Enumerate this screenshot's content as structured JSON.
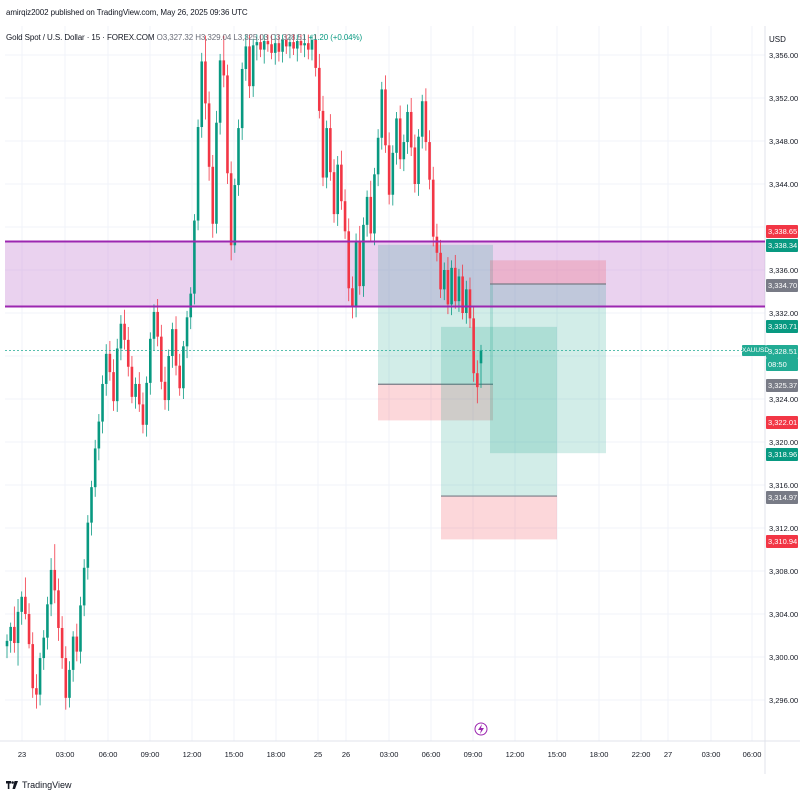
{
  "publisher": "amirqiz2002 published on TradingView.com, May 26, 2025 09:36 UTC",
  "legend": {
    "symbol": "Gold Spot / U.S. Dollar · 15 · FOREX.COM",
    "open": "O3,327.32",
    "high": "H3,329.04",
    "low": "L3,325.03",
    "close": "C3,328.51",
    "change": "+1.20 (+0.04%)"
  },
  "currency": "USD",
  "footer_brand": "TradingView",
  "chart_data": {
    "type": "candlestick",
    "symbol": "XAUUSD",
    "timeframe": "15",
    "y_axis": {
      "min": 3294,
      "max": 3358,
      "ticks": [
        3296,
        3300,
        3304,
        3308,
        3312,
        3316,
        3320,
        3324,
        3328,
        3332,
        3336,
        3340,
        3344,
        3348,
        3352,
        3356
      ],
      "tick_labels": [
        "3,296.00",
        "3,300.00",
        "3,304.00",
        "3,308.00",
        "3,312.00",
        "3,316.00",
        "3,320.00",
        "3,324.00",
        "3,328.00",
        "3,332.00",
        "3,336.00",
        "3,340.00",
        "3,344.00",
        "3,348.00",
        "3,352.00",
        "3,356.00"
      ]
    },
    "x_axis": {
      "labels": [
        "23",
        "03:00",
        "06:00",
        "09:00",
        "12:00",
        "15:00",
        "18:00",
        "25",
        "26",
        "03:00",
        "06:00",
        "09:00",
        "12:00",
        "15:00",
        "18:00",
        "22:00",
        "27",
        "03:00",
        "06:00"
      ]
    },
    "candles": [
      [
        3301.0,
        3302.1,
        3299.9,
        3301.5
      ],
      [
        3301.5,
        3303.2,
        3300.4,
        3302.8
      ],
      [
        3302.8,
        3304.7,
        3300.4,
        3301.3
      ],
      [
        3301.3,
        3305.4,
        3299.2,
        3304.2
      ],
      [
        3304.2,
        3306.1,
        3303.0,
        3305.6
      ],
      [
        3305.6,
        3307.4,
        3303.5,
        3304.0
      ],
      [
        3304.0,
        3305.0,
        3300.8,
        3301.2
      ],
      [
        3301.2,
        3302.3,
        3296.2,
        3297.1
      ],
      [
        3297.1,
        3298.4,
        3295.2,
        3296.5
      ],
      [
        3296.5,
        3300.4,
        3295.5,
        3299.9
      ],
      [
        3299.9,
        3302.5,
        3298.8,
        3301.8
      ],
      [
        3301.8,
        3305.6,
        3300.7,
        3304.9
      ],
      [
        3304.9,
        3309.2,
        3303.8,
        3308.1
      ],
      [
        3308.1,
        3310.5,
        3305.0,
        3306.2
      ],
      [
        3306.2,
        3307.3,
        3301.5,
        3302.7
      ],
      [
        3302.7,
        3303.8,
        3298.9,
        3299.9
      ],
      [
        3299.9,
        3301.0,
        3295.1,
        3296.2
      ],
      [
        3296.2,
        3299.6,
        3295.3,
        3298.8
      ],
      [
        3298.8,
        3302.4,
        3297.7,
        3301.9
      ],
      [
        3301.9,
        3303.1,
        3299.6,
        3300.5
      ],
      [
        3300.5,
        3305.6,
        3299.4,
        3304.8
      ],
      [
        3304.8,
        3309.1,
        3303.8,
        3308.3
      ],
      [
        3308.3,
        3313.2,
        3307.2,
        3312.5
      ],
      [
        3312.5,
        3316.4,
        3311.3,
        3315.8
      ],
      [
        3315.8,
        3320.2,
        3314.9,
        3319.4
      ],
      [
        3319.4,
        3322.6,
        3318.3,
        3321.9
      ],
      [
        3321.9,
        3326.2,
        3320.8,
        3325.4
      ],
      [
        3325.4,
        3329.1,
        3324.3,
        3328.2
      ],
      [
        3328.2,
        3329.4,
        3325.7,
        3326.5
      ],
      [
        3326.5,
        3327.7,
        3322.9,
        3323.8
      ],
      [
        3323.8,
        3329.6,
        3322.8,
        3328.7
      ],
      [
        3328.7,
        3331.8,
        3327.6,
        3331.0
      ],
      [
        3331.0,
        3332.3,
        3328.6,
        3329.5
      ],
      [
        3329.5,
        3330.7,
        3326.1,
        3327.0
      ],
      [
        3327.0,
        3328.0,
        3323.6,
        3324.2
      ],
      [
        3324.2,
        3326.0,
        3323.1,
        3325.4
      ],
      [
        3325.4,
        3326.5,
        3322.8,
        3323.5
      ],
      [
        3323.5,
        3324.6,
        3320.8,
        3321.6
      ],
      [
        3321.6,
        3326.1,
        3320.5,
        3325.5
      ],
      [
        3325.5,
        3330.2,
        3324.4,
        3329.6
      ],
      [
        3329.6,
        3332.8,
        3328.5,
        3332.1
      ],
      [
        3332.1,
        3333.3,
        3328.9,
        3329.8
      ],
      [
        3329.8,
        3330.9,
        3324.9,
        3325.6
      ],
      [
        3325.6,
        3327.0,
        3323.0,
        3323.9
      ],
      [
        3323.9,
        3328.6,
        3322.9,
        3328.0
      ],
      [
        3328.0,
        3331.1,
        3326.9,
        3330.5
      ],
      [
        3330.5,
        3331.7,
        3326.2,
        3327.1
      ],
      [
        3327.1,
        3328.2,
        3324.3,
        3325.0
      ],
      [
        3325.0,
        3329.4,
        3324.0,
        3328.9
      ],
      [
        3328.9,
        3332.2,
        3327.8,
        3331.6
      ],
      [
        3331.6,
        3334.4,
        3330.5,
        3333.8
      ],
      [
        3333.8,
        3341.2,
        3332.8,
        3340.6
      ],
      [
        3340.6,
        3350.0,
        3339.7,
        3349.3
      ],
      [
        3349.3,
        3356.2,
        3348.3,
        3355.4
      ],
      [
        3355.4,
        3357.8,
        3350.0,
        3351.5
      ],
      [
        3351.5,
        3352.6,
        3344.3,
        3345.6
      ],
      [
        3345.6,
        3346.7,
        3339.0,
        3340.3
      ],
      [
        3340.3,
        3350.8,
        3339.4,
        3349.7
      ],
      [
        3349.7,
        3356.1,
        3348.6,
        3355.5
      ],
      [
        3355.5,
        3357.8,
        3353.0,
        3354.1
      ],
      [
        3354.1,
        3355.1,
        3344.0,
        3345.0
      ],
      [
        3345.0,
        3346.1,
        3336.9,
        3338.3
      ],
      [
        3338.3,
        3344.5,
        3337.6,
        3343.9
      ],
      [
        3343.9,
        3350.0,
        3342.9,
        3349.2
      ],
      [
        3349.2,
        3355.3,
        3348.1,
        3354.7
      ],
      [
        3354.7,
        3357.9,
        3353.6,
        3356.8
      ],
      [
        3356.8,
        3357.9,
        3352.0,
        3353.1
      ],
      [
        3353.1,
        3357.5,
        3352.1,
        3356.9
      ],
      [
        3356.9,
        3357.9,
        3355.5,
        3357.2
      ],
      [
        3357.2,
        3357.9,
        3355.8,
        3356.5
      ],
      [
        3356.5,
        3357.9,
        3355.2,
        3357.3
      ],
      [
        3357.3,
        3357.9,
        3356.3,
        3357.0
      ],
      [
        3357.0,
        3357.9,
        3355.6,
        3356.2
      ],
      [
        3356.2,
        3357.9,
        3355.1,
        3357.1
      ],
      [
        3357.1,
        3357.9,
        3355.4,
        3356.3
      ],
      [
        3356.3,
        3357.9,
        3355.3,
        3357.4
      ],
      [
        3357.4,
        3357.9,
        3356.1,
        3356.8
      ],
      [
        3356.8,
        3357.9,
        3355.7,
        3357.2
      ],
      [
        3357.2,
        3357.9,
        3356.0,
        3356.6
      ],
      [
        3356.6,
        3357.9,
        3355.4,
        3357.3
      ],
      [
        3357.3,
        3357.9,
        3356.2,
        3356.9
      ],
      [
        3356.9,
        3357.9,
        3355.8,
        3357.1
      ],
      [
        3357.1,
        3357.9,
        3355.6,
        3356.5
      ],
      [
        3356.5,
        3357.9,
        3355.5,
        3357.4
      ],
      [
        3357.4,
        3357.9,
        3354.0,
        3354.8
      ],
      [
        3354.8,
        3356.1,
        3350.1,
        3350.8
      ],
      [
        3350.8,
        3352.2,
        3343.8,
        3344.6
      ],
      [
        3344.6,
        3349.9,
        3343.6,
        3349.2
      ],
      [
        3349.2,
        3350.5,
        3344.3,
        3345.1
      ],
      [
        3345.1,
        3346.3,
        3340.4,
        3341.2
      ],
      [
        3341.2,
        3346.6,
        3340.1,
        3345.8
      ],
      [
        3345.8,
        3347.1,
        3341.6,
        3342.4
      ],
      [
        3342.4,
        3343.5,
        3338.9,
        3339.6
      ],
      [
        3339.6,
        3340.8,
        3333.1,
        3334.3
      ],
      [
        3334.3,
        3335.4,
        3331.5,
        3332.6
      ],
      [
        3332.6,
        3339.4,
        3331.6,
        3338.7
      ],
      [
        3338.7,
        3340.1,
        3333.7,
        3334.5
      ],
      [
        3334.5,
        3340.9,
        3333.5,
        3340.2
      ],
      [
        3340.2,
        3343.4,
        3339.1,
        3342.8
      ],
      [
        3342.8,
        3344.3,
        3338.6,
        3339.4
      ],
      [
        3339.4,
        3345.5,
        3338.3,
        3344.9
      ],
      [
        3344.9,
        3349.1,
        3343.8,
        3348.3
      ],
      [
        3348.3,
        3353.5,
        3347.2,
        3352.8
      ],
      [
        3352.8,
        3354.1,
        3346.9,
        3347.6
      ],
      [
        3347.6,
        3348.8,
        3342.1,
        3343.0
      ],
      [
        3343.0,
        3347.6,
        3342.0,
        3346.9
      ],
      [
        3346.9,
        3350.7,
        3345.8,
        3350.1
      ],
      [
        3350.1,
        3351.3,
        3345.4,
        3346.3
      ],
      [
        3346.3,
        3348.6,
        3345.2,
        3347.9
      ],
      [
        3347.9,
        3351.4,
        3346.8,
        3350.7
      ],
      [
        3350.7,
        3352.0,
        3346.6,
        3347.4
      ],
      [
        3347.4,
        3348.6,
        3343.2,
        3344.0
      ],
      [
        3344.0,
        3349.1,
        3342.9,
        3348.4
      ],
      [
        3348.4,
        3352.3,
        3347.3,
        3351.7
      ],
      [
        3351.7,
        3352.9,
        3347.1,
        3347.9
      ],
      [
        3347.9,
        3349.0,
        3343.5,
        3344.4
      ],
      [
        3344.4,
        3345.6,
        3338.2,
        3339.1
      ],
      [
        3339.1,
        3340.3,
        3336.8,
        3337.6
      ],
      [
        3337.6,
        3338.8,
        3333.4,
        3334.2
      ],
      [
        3334.2,
        3336.7,
        3333.2,
        3336.0
      ],
      [
        3336.0,
        3337.2,
        3331.9,
        3332.8
      ],
      [
        3332.8,
        3336.9,
        3331.8,
        3336.2
      ],
      [
        3336.2,
        3337.4,
        3332.4,
        3333.1
      ],
      [
        3333.1,
        3336.1,
        3332.1,
        3335.4
      ],
      [
        3335.4,
        3336.5,
        3331.4,
        3332.0
      ],
      [
        3332.0,
        3335.0,
        3331.0,
        3334.2
      ],
      [
        3334.2,
        3335.3,
        3330.6,
        3331.5
      ],
      [
        3331.5,
        3332.6,
        3325.6,
        3326.4
      ],
      [
        3326.4,
        3327.6,
        3323.6,
        3325.1
      ],
      [
        3327.32,
        3329.04,
        3325.03,
        3328.51
      ]
    ],
    "horizontal_lines": [
      {
        "price": 3338.65,
        "color": "#9c27b0"
      },
      {
        "price": 3332.6,
        "color": "#9c27b0"
      }
    ],
    "price_zone": {
      "top": 3338.65,
      "bottom": 3332.6,
      "color": "#ce93d8"
    },
    "current_price": 3328.51,
    "positions": [
      {
        "kind": "short",
        "entry": 3325.37,
        "stop": 3322.01,
        "target": 3338.34
      },
      {
        "kind": "short",
        "entry": 3334.7,
        "stop": 3336.9,
        "target": 3318.96
      },
      {
        "kind": "long",
        "entry": 3314.97,
        "stop": 3310.94,
        "target": 3330.71
      }
    ],
    "price_labels": [
      {
        "text": "3,338.65",
        "color": "#f23645"
      },
      {
        "text": "3,338.34",
        "color": "#089981"
      },
      {
        "text": "3,334.70",
        "color": "#787b86"
      },
      {
        "text": "3,330.71",
        "color": "#089981"
      },
      {
        "text": "3,328.51",
        "color": "#22ab94"
      },
      {
        "text": "08:50",
        "color": "#22ab94"
      },
      {
        "text": "3,325.37",
        "color": "#787b86"
      },
      {
        "text": "3,322.01",
        "color": "#f23645"
      },
      {
        "text": "3,318.96",
        "color": "#089981"
      },
      {
        "text": "3,314.97",
        "color": "#787b86"
      },
      {
        "text": "3,310.94",
        "color": "#f23645"
      }
    ],
    "symbol_tag": "XAUUSD",
    "colors": {
      "up": "#089981",
      "down": "#f23645",
      "grid": "#f0f3fa",
      "axis_text": "#131722"
    }
  }
}
